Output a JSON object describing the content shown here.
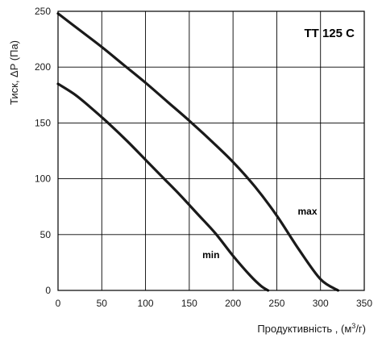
{
  "chart_data": {
    "type": "line",
    "title": "TT 125 C",
    "xlabel": "Продуктивність, (м³/г)",
    "xlabel_parts": {
      "prefix": "Продуктивність , (м",
      "sup": "3",
      "suffix": "/г)"
    },
    "ylabel": "Тиск, ΔP (Па)",
    "xlim": [
      0,
      350
    ],
    "ylim": [
      0,
      250
    ],
    "xticks": [
      0,
      50,
      100,
      150,
      200,
      250,
      300,
      350
    ],
    "yticks": [
      0,
      50,
      100,
      150,
      200,
      250
    ],
    "grid": true,
    "series": [
      {
        "name": "max",
        "x": [
          0,
          25,
          50,
          75,
          100,
          125,
          150,
          175,
          200,
          225,
          250,
          275,
          300,
          320
        ],
        "y": [
          248,
          233,
          218,
          202,
          186,
          169,
          152,
          134,
          115,
          93,
          67,
          37,
          10,
          0
        ]
      },
      {
        "name": "min",
        "x": [
          0,
          20,
          40,
          60,
          80,
          100,
          120,
          140,
          160,
          180,
          200,
          220,
          232,
          240
        ],
        "y": [
          185,
          175,
          162,
          148,
          133,
          117,
          101,
          85,
          68,
          51,
          31,
          13,
          4,
          0
        ]
      }
    ]
  }
}
